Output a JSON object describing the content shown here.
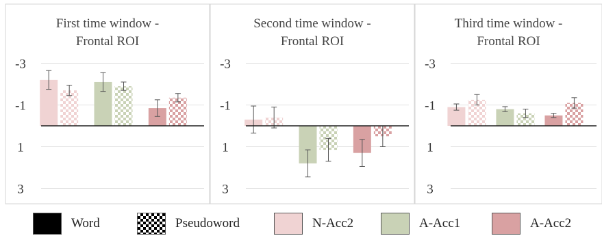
{
  "chart_data": {
    "type": "bar",
    "y_axis": {
      "ticks": [
        "-3",
        "-1",
        "1",
        "3"
      ],
      "ylim": [
        3.4,
        -3.4
      ],
      "inverted": true,
      "grid": true
    },
    "conditions": [
      "N-Acc2",
      "A-Acc1",
      "A-Acc2"
    ],
    "groups": [
      {
        "name": "Word",
        "pattern": "solid"
      },
      {
        "name": "Pseudoword",
        "pattern": "checker"
      }
    ],
    "colors": {
      "N-Acc2": "#f0d3d3",
      "A-Acc1": "#c9d2b6",
      "A-Acc2": "#d9a1a2"
    },
    "panels": [
      {
        "title_line1": "First time window -",
        "title_line2": "Frontal ROI",
        "bars": [
          {
            "condition": "N-Acc2",
            "group": "Word",
            "value": -2.2,
            "error": 0.45
          },
          {
            "condition": "N-Acc2",
            "group": "Pseudoword",
            "value": -1.7,
            "error": 0.25
          },
          {
            "condition": "A-Acc1",
            "group": "Word",
            "value": -2.1,
            "error": 0.45
          },
          {
            "condition": "A-Acc1",
            "group": "Pseudoword",
            "value": -1.9,
            "error": 0.2
          },
          {
            "condition": "A-Acc2",
            "group": "Word",
            "value": -0.85,
            "error": 0.4
          },
          {
            "condition": "A-Acc2",
            "group": "Pseudoword",
            "value": -1.35,
            "error": 0.2
          }
        ]
      },
      {
        "title_line1": "Second time window -",
        "title_line2": "Frontal ROI",
        "bars": [
          {
            "condition": "N-Acc2",
            "group": "Word",
            "value": -0.3,
            "error": 0.65
          },
          {
            "condition": "N-Acc2",
            "group": "Pseudoword",
            "value": -0.4,
            "error": 0.5
          },
          {
            "condition": "A-Acc1",
            "group": "Word",
            "value": 1.8,
            "error": 0.65
          },
          {
            "condition": "A-Acc1",
            "group": "Pseudoword",
            "value": 1.15,
            "error": 0.55
          },
          {
            "condition": "A-Acc2",
            "group": "Word",
            "value": 1.3,
            "error": 0.65
          },
          {
            "condition": "A-Acc2",
            "group": "Pseudoword",
            "value": 0.5,
            "error": 0.5
          }
        ]
      },
      {
        "title_line1": "Third time window -",
        "title_line2": "Frontal ROI",
        "bars": [
          {
            "condition": "N-Acc2",
            "group": "Word",
            "value": -0.9,
            "error": 0.15
          },
          {
            "condition": "N-Acc2",
            "group": "Pseudoword",
            "value": -1.25,
            "error": 0.25
          },
          {
            "condition": "A-Acc1",
            "group": "Word",
            "value": -0.8,
            "error": 0.12
          },
          {
            "condition": "A-Acc1",
            "group": "Pseudoword",
            "value": -0.6,
            "error": 0.2
          },
          {
            "condition": "A-Acc2",
            "group": "Word",
            "value": -0.5,
            "error": 0.1
          },
          {
            "condition": "A-Acc2",
            "group": "Pseudoword",
            "value": -1.1,
            "error": 0.25
          }
        ]
      }
    ]
  },
  "legend": [
    {
      "label": "Word",
      "pattern": "solid",
      "color": "#000000"
    },
    {
      "label": "Pseudoword",
      "pattern": "checker",
      "color": "#000000"
    },
    {
      "label": "N-Acc2",
      "pattern": "solid",
      "color": "#f0d3d3"
    },
    {
      "label": "A-Acc1",
      "pattern": "solid",
      "color": "#c9d2b6"
    },
    {
      "label": "A-Acc2",
      "pattern": "solid",
      "color": "#d9a1a2"
    }
  ]
}
